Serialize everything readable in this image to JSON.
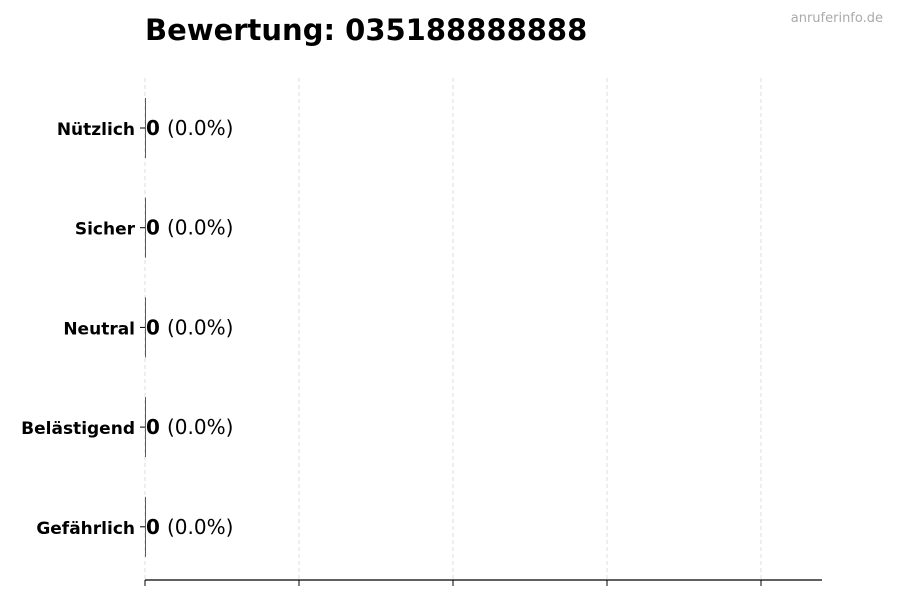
{
  "watermark": "anruferinfo.de",
  "chart_data": {
    "type": "bar",
    "orientation": "horizontal",
    "title": "Bewertung: 035188888888",
    "categories": [
      "Nützlich",
      "Sicher",
      "Neutral",
      "Belästigend",
      "Gefährlich"
    ],
    "values": [
      0,
      0,
      0,
      0,
      0
    ],
    "value_labels": [
      "0",
      "0",
      "0",
      "0",
      "0"
    ],
    "percent_labels": [
      "(0.0%)",
      "(0.0%)",
      "(0.0%)",
      "(0.0%)",
      "(0.0%)"
    ],
    "xlabel": "",
    "ylabel": "",
    "x_tick_labels": [],
    "grid": "vertical dashed",
    "colors": {
      "grid": "#dddddd",
      "axis": "#000000",
      "watermark": "#aaaaaa"
    }
  }
}
